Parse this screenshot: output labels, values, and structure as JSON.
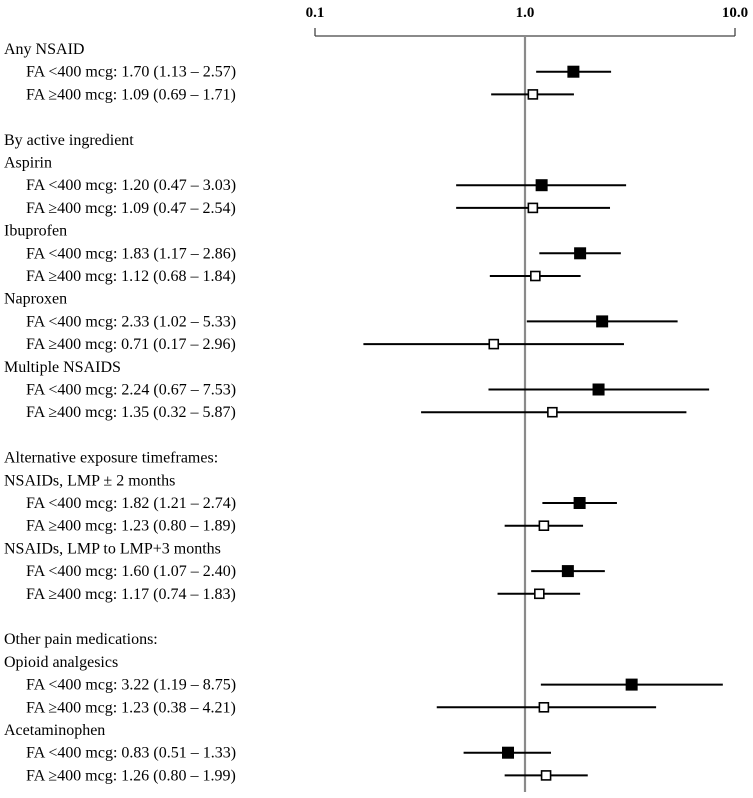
{
  "chart_data": {
    "type": "forest",
    "title": "",
    "xscale": "log",
    "xlim": [
      0.1,
      10.0
    ],
    "reference_line": 1.0,
    "ticks": [
      {
        "value": 0.1,
        "label": "0.1"
      },
      {
        "value": 1.0,
        "label": "1.0"
      },
      {
        "value": 10.0,
        "label": "10.0"
      }
    ],
    "legend_markers": {
      "filled": "FA <400 mcg",
      "open": "FA ≥400 mcg"
    },
    "rows": [
      {
        "label": "Any NSAID",
        "kind": "header"
      },
      {
        "label": "FA <400 mcg: 1.70 (1.13 – 2.57)",
        "kind": "estimate",
        "marker": "filled",
        "est": 1.7,
        "lo": 1.13,
        "hi": 2.57
      },
      {
        "label": "FA ≥400 mcg: 1.09 (0.69 – 1.71)",
        "kind": "estimate",
        "marker": "open",
        "est": 1.09,
        "lo": 0.69,
        "hi": 1.71
      },
      {
        "kind": "spacer"
      },
      {
        "label": "By active ingredient",
        "kind": "header"
      },
      {
        "label": "Aspirin",
        "kind": "header"
      },
      {
        "label": "FA <400 mcg: 1.20 (0.47 – 3.03)",
        "kind": "estimate",
        "marker": "filled",
        "est": 1.2,
        "lo": 0.47,
        "hi": 3.03
      },
      {
        "label": "FA ≥400 mcg: 1.09 (0.47 – 2.54)",
        "kind": "estimate",
        "marker": "open",
        "est": 1.09,
        "lo": 0.47,
        "hi": 2.54
      },
      {
        "label": "Ibuprofen",
        "kind": "header"
      },
      {
        "label": "FA <400 mcg: 1.83 (1.17 – 2.86)",
        "kind": "estimate",
        "marker": "filled",
        "est": 1.83,
        "lo": 1.17,
        "hi": 2.86
      },
      {
        "label": "FA ≥400 mcg: 1.12 (0.68 – 1.84)",
        "kind": "estimate",
        "marker": "open",
        "est": 1.12,
        "lo": 0.68,
        "hi": 1.84
      },
      {
        "label": "Naproxen",
        "kind": "header"
      },
      {
        "label": "FA <400 mcg: 2.33 (1.02 – 5.33)",
        "kind": "estimate",
        "marker": "filled",
        "est": 2.33,
        "lo": 1.02,
        "hi": 5.33
      },
      {
        "label": "FA ≥400 mcg: 0.71 (0.17 – 2.96)",
        "kind": "estimate",
        "marker": "open",
        "est": 0.71,
        "lo": 0.17,
        "hi": 2.96
      },
      {
        "label": "Multiple NSAIDS",
        "kind": "header"
      },
      {
        "label": "FA <400 mcg: 2.24 (0.67 – 7.53)",
        "kind": "estimate",
        "marker": "filled",
        "est": 2.24,
        "lo": 0.67,
        "hi": 7.53
      },
      {
        "label": "FA ≥400 mcg: 1.35 (0.32 – 5.87)",
        "kind": "estimate",
        "marker": "open",
        "est": 1.35,
        "lo": 0.32,
        "hi": 5.87
      },
      {
        "kind": "spacer"
      },
      {
        "label": "Alternative exposure timeframes:",
        "kind": "header"
      },
      {
        "label": "NSAIDs, LMP ± 2 months",
        "kind": "header"
      },
      {
        "label": "FA <400 mcg: 1.82 (1.21 – 2.74)",
        "kind": "estimate",
        "marker": "filled",
        "est": 1.82,
        "lo": 1.21,
        "hi": 2.74
      },
      {
        "label": "FA ≥400 mcg: 1.23 (0.80 – 1.89)",
        "kind": "estimate",
        "marker": "open",
        "est": 1.23,
        "lo": 0.8,
        "hi": 1.89
      },
      {
        "label": "NSAIDs, LMP to LMP+3 months",
        "kind": "header"
      },
      {
        "label": "FA <400 mcg: 1.60 (1.07 – 2.40)",
        "kind": "estimate",
        "marker": "filled",
        "est": 1.6,
        "lo": 1.07,
        "hi": 2.4
      },
      {
        "label": "FA ≥400 mcg: 1.17 (0.74 – 1.83)",
        "kind": "estimate",
        "marker": "open",
        "est": 1.17,
        "lo": 0.74,
        "hi": 1.83
      },
      {
        "kind": "spacer"
      },
      {
        "label": "Other pain medications:",
        "kind": "header"
      },
      {
        "label": "Opioid analgesics",
        "kind": "header"
      },
      {
        "label": "FA <400 mcg: 3.22 (1.19 – 8.75)",
        "kind": "estimate",
        "marker": "filled",
        "est": 3.22,
        "lo": 1.19,
        "hi": 8.75
      },
      {
        "label": "FA ≥400 mcg: 1.23 (0.38 – 4.21)",
        "kind": "estimate",
        "marker": "open",
        "est": 1.23,
        "lo": 0.38,
        "hi": 4.21
      },
      {
        "label": "Acetaminophen",
        "kind": "header"
      },
      {
        "label": "FA <400 mcg: 0.83 (0.51 – 1.33)",
        "kind": "estimate",
        "marker": "filled",
        "est": 0.83,
        "lo": 0.51,
        "hi": 1.33
      },
      {
        "label": "FA ≥400 mcg: 1.26 (0.80 – 1.99)",
        "kind": "estimate",
        "marker": "open",
        "est": 1.26,
        "lo": 0.8,
        "hi": 1.99
      }
    ]
  }
}
